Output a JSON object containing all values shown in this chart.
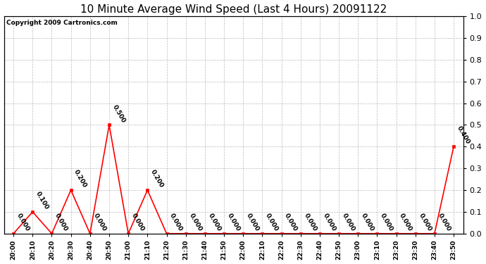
{
  "title": "10 Minute Average Wind Speed (Last 4 Hours) 20091122",
  "copyright": "Copyright 2009 Cartronics.com",
  "x_labels": [
    "20:00",
    "20:10",
    "20:20",
    "20:30",
    "20:40",
    "20:50",
    "21:00",
    "21:10",
    "21:20",
    "21:30",
    "21:40",
    "21:50",
    "22:00",
    "22:10",
    "22:20",
    "22:30",
    "22:40",
    "22:50",
    "23:00",
    "23:10",
    "23:20",
    "23:30",
    "23:40",
    "23:50"
  ],
  "y_values": [
    0.0,
    0.1,
    0.0,
    0.2,
    0.0,
    0.5,
    0.0,
    0.2,
    0.0,
    0.0,
    0.0,
    0.0,
    0.0,
    0.0,
    0.0,
    0.0,
    0.0,
    0.0,
    0.0,
    0.0,
    0.0,
    0.0,
    0.0,
    0.4
  ],
  "line_color": "#ff0000",
  "marker_color": "#ff0000",
  "grid_color": "#bbbbbb",
  "bg_color": "#ffffff",
  "plot_bg_color": "#ffffff",
  "title_fontsize": 11,
  "ylim": [
    0.0,
    1.0
  ],
  "yticks": [
    0.0,
    0.1,
    0.2,
    0.3,
    0.4,
    0.5,
    0.6,
    0.7,
    0.8,
    0.9,
    1.0
  ],
  "annotation_rotation": -60,
  "annotation_fontsize": 6.5,
  "copyright_fontsize": 6.5
}
